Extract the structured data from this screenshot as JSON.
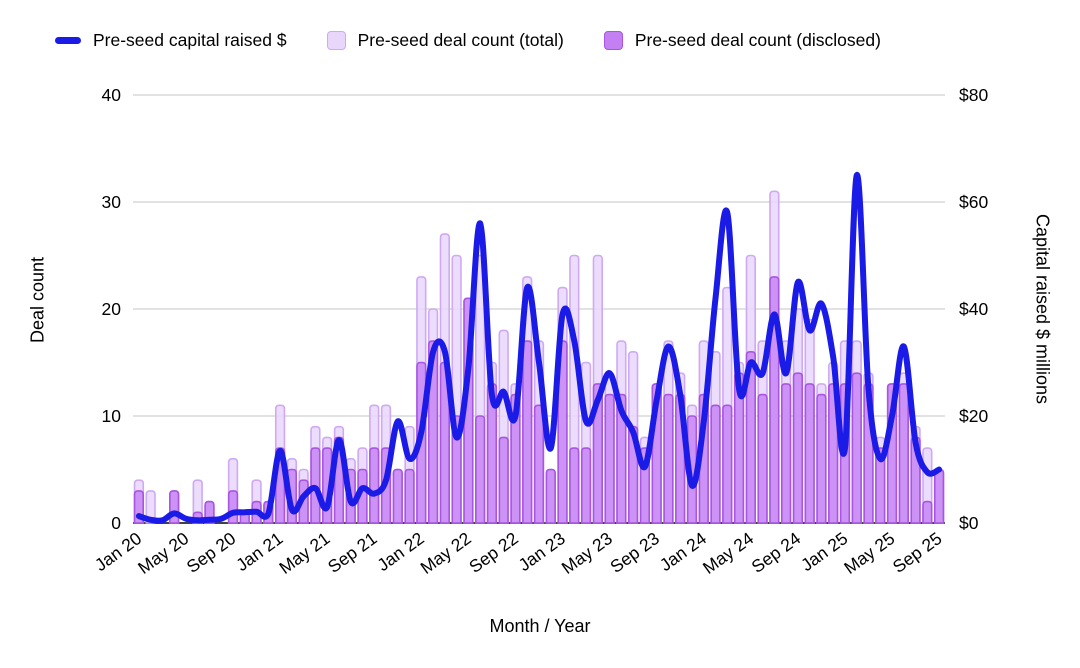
{
  "legend": {
    "capital_label": "Pre-seed capital raised $",
    "total_label": "Pre-seed deal count (total)",
    "disclosed_label": "Pre-seed deal count (disclosed)"
  },
  "colors": {
    "capital_line": "#1b1be8",
    "total_fill": "#e9d7fb",
    "total_stroke": "#cfa9f3",
    "disclosed_fill": "#c47ff2",
    "disclosed_stroke": "#a955e0",
    "gridline": "#d9d9d9",
    "axis_line": "#424242",
    "tick_text": "#000000"
  },
  "chart_data": {
    "type": "combo-bar-line",
    "title": "",
    "xlabel": "Month / Year",
    "ylabel_left": "Deal count",
    "ylabel_right": "Capital raised $ millions",
    "y_left_ticks": [
      0,
      10,
      20,
      30,
      40
    ],
    "y_right_ticks": [
      "$0",
      "$20",
      "$40",
      "$60",
      "$80"
    ],
    "y_left_range": [
      0,
      40
    ],
    "y_right_range": [
      0,
      80
    ],
    "grid": "horizontal-only",
    "legend_position": "top",
    "x_tick_every": 4,
    "months": [
      "Jan 20",
      "Feb 20",
      "Mar 20",
      "Apr 20",
      "May 20",
      "Jun 20",
      "Jul 20",
      "Aug 20",
      "Sep 20",
      "Oct 20",
      "Nov 20",
      "Dec 20",
      "Jan 21",
      "Feb 21",
      "Mar 21",
      "Apr 21",
      "May 21",
      "Jun 21",
      "Jul 21",
      "Aug 21",
      "Sep 21",
      "Oct 21",
      "Nov 21",
      "Dec 21",
      "Jan 22",
      "Feb 22",
      "Mar 22",
      "Apr 22",
      "May 22",
      "Jun 22",
      "Jul 22",
      "Aug 22",
      "Sep 22",
      "Oct 22",
      "Nov 22",
      "Dec 22",
      "Jan 23",
      "Feb 23",
      "Mar 23",
      "Apr 23",
      "May 23",
      "Jun 23",
      "Jul 23",
      "Aug 23",
      "Sep 23",
      "Oct 23",
      "Nov 23",
      "Dec 23",
      "Jan 24",
      "Feb 24",
      "Mar 24",
      "Apr 24",
      "May 24",
      "Jun 24",
      "Jul 24",
      "Aug 24",
      "Sep 24",
      "Oct 24",
      "Nov 24",
      "Dec 24",
      "Jan 25",
      "Feb 25",
      "Mar 25",
      "Apr 25",
      "May 25",
      "Jun 25",
      "Jul 25",
      "Aug 25",
      "Sep 25"
    ],
    "series": [
      {
        "name": "Pre-seed deal count (total)",
        "type": "bar",
        "axis": "left",
        "values": [
          4,
          3,
          0,
          3,
          0,
          4,
          2,
          0,
          6,
          1,
          4,
          2,
          11,
          6,
          5,
          9,
          8,
          9,
          6,
          7,
          11,
          11,
          5,
          9,
          23,
          20,
          27,
          25,
          21,
          25,
          15,
          18,
          13,
          23,
          17,
          5,
          22,
          25,
          15,
          25,
          14,
          17,
          16,
          8,
          13,
          17,
          14,
          11,
          17,
          16,
          22,
          15,
          25,
          17,
          31,
          17,
          20,
          19,
          13,
          15,
          17,
          17,
          14,
          8,
          13,
          14,
          9,
          7,
          5
        ]
      },
      {
        "name": "Pre-seed deal count (disclosed)",
        "type": "bar",
        "axis": "left",
        "values": [
          3,
          0,
          0,
          3,
          0,
          1,
          2,
          0,
          3,
          1,
          2,
          2,
          7,
          5,
          4,
          7,
          7,
          8,
          5,
          5,
          7,
          7,
          5,
          5,
          15,
          17,
          15,
          10,
          21,
          10,
          13,
          8,
          12,
          17,
          11,
          5,
          17,
          7,
          7,
          13,
          12,
          12,
          9,
          7,
          13,
          12,
          12,
          10,
          12,
          11,
          11,
          14,
          16,
          12,
          23,
          13,
          14,
          13,
          12,
          13,
          13,
          14,
          13,
          7,
          13,
          13,
          8,
          2,
          5
        ]
      },
      {
        "name": "Pre-seed capital raised $",
        "type": "line",
        "axis": "right",
        "values": [
          1.3,
          0.6,
          0.5,
          1.8,
          0.8,
          0.5,
          0.6,
          0.8,
          1.9,
          2.0,
          2.1,
          1.7,
          13.5,
          2.5,
          5,
          6.5,
          3,
          15.5,
          4,
          6.5,
          5.5,
          8,
          19,
          12,
          17,
          32,
          32,
          16,
          29,
          56,
          24,
          24.5,
          20,
          44,
          30,
          14,
          39,
          34,
          19,
          23,
          28,
          21,
          17,
          10.5,
          23,
          33,
          24,
          7,
          19,
          42,
          58,
          25,
          30,
          28,
          39,
          28,
          45,
          36,
          41,
          31,
          14,
          65,
          25,
          12,
          20,
          33,
          15,
          9.5,
          10
        ]
      }
    ]
  }
}
